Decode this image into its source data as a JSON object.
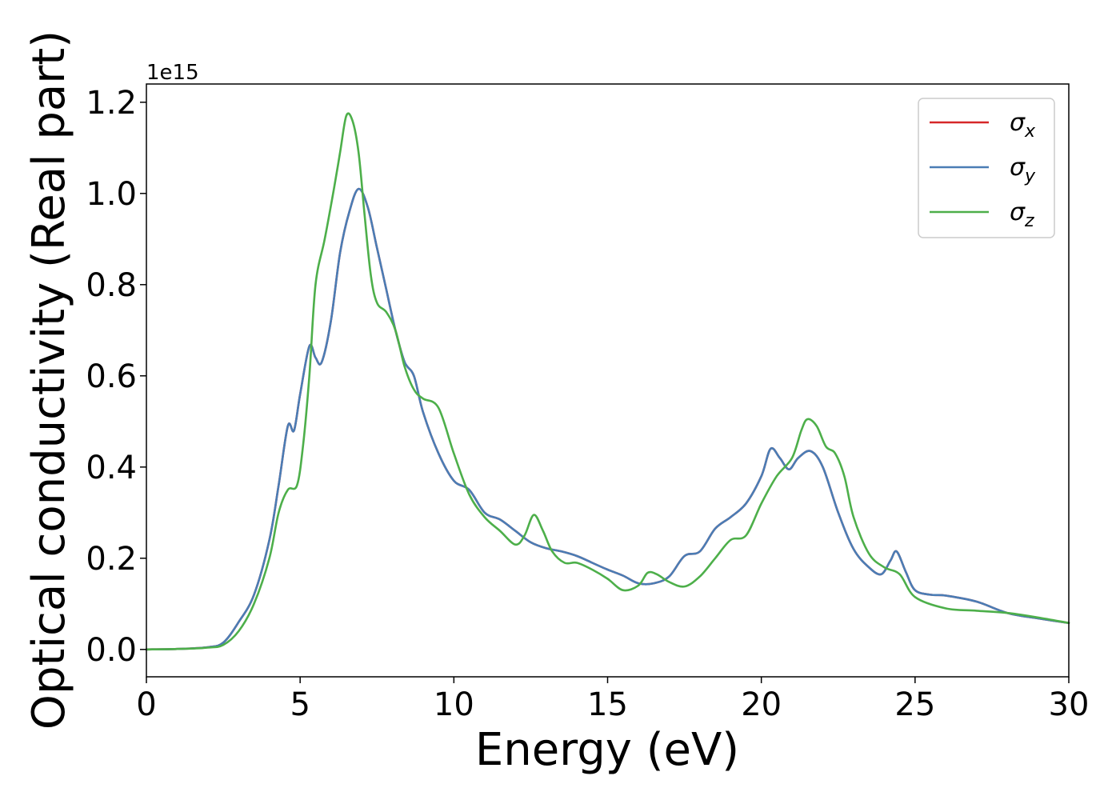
{
  "chart_data": {
    "type": "line",
    "title": "",
    "xlabel": "Energy (eV)",
    "ylabel": "Optical conductivity (Real part)",
    "y_offset_label": "1e15",
    "xlim": [
      0,
      30
    ],
    "ylim": [
      -0.06,
      1.24
    ],
    "xticks": [
      0,
      5,
      10,
      15,
      20,
      25,
      30
    ],
    "xtick_labels": [
      "0",
      "5",
      "10",
      "15",
      "20",
      "25",
      "30"
    ],
    "yticks": [
      0.0,
      0.2,
      0.4,
      0.6,
      0.8,
      1.0,
      1.2
    ],
    "ytick_labels": [
      "0.0",
      "0.2",
      "0.4",
      "0.6",
      "0.8",
      "1.0",
      "1.2"
    ],
    "grid": false,
    "legend_position": "top-right",
    "series": [
      {
        "name": "σx",
        "symbol": "σ",
        "subscript": "x",
        "color": "#d62728",
        "x": [
          0,
          1,
          2,
          2.5,
          3,
          3.5,
          4,
          4.3,
          4.6,
          4.8,
          5.0,
          5.3,
          5.5,
          5.7,
          6.0,
          6.3,
          6.6,
          6.9,
          7.2,
          7.5,
          7.8,
          8.1,
          8.4,
          8.7,
          9.0,
          9.5,
          10.0,
          10.5,
          11.0,
          11.5,
          12.0,
          12.5,
          13.0,
          13.5,
          14.0,
          14.5,
          15.0,
          15.5,
          16.0,
          16.5,
          17.0,
          17.5,
          18.0,
          18.5,
          19.0,
          19.5,
          20.0,
          20.3,
          20.6,
          20.9,
          21.2,
          21.6,
          22.0,
          22.5,
          23.0,
          23.5,
          23.9,
          24.2,
          24.4,
          24.7,
          25.0,
          25.5,
          26.0,
          27.0,
          28.0,
          29.0,
          30.0
        ],
        "y": [
          0.0,
          0.001,
          0.005,
          0.015,
          0.06,
          0.12,
          0.24,
          0.36,
          0.49,
          0.48,
          0.56,
          0.665,
          0.64,
          0.63,
          0.72,
          0.87,
          0.96,
          1.01,
          0.97,
          0.88,
          0.79,
          0.7,
          0.63,
          0.6,
          0.52,
          0.43,
          0.37,
          0.35,
          0.3,
          0.285,
          0.26,
          0.235,
          0.222,
          0.215,
          0.205,
          0.19,
          0.175,
          0.162,
          0.145,
          0.145,
          0.16,
          0.205,
          0.215,
          0.265,
          0.29,
          0.32,
          0.38,
          0.44,
          0.42,
          0.395,
          0.42,
          0.435,
          0.4,
          0.3,
          0.22,
          0.18,
          0.165,
          0.195,
          0.215,
          0.17,
          0.13,
          0.12,
          0.118,
          0.105,
          0.08,
          0.068,
          0.058
        ]
      },
      {
        "name": "σy",
        "symbol": "σ",
        "subscript": "y",
        "color": "#4a7db5",
        "x": [
          0,
          1,
          2,
          2.5,
          3,
          3.5,
          4,
          4.3,
          4.6,
          4.8,
          5.0,
          5.3,
          5.5,
          5.7,
          6.0,
          6.3,
          6.6,
          6.9,
          7.2,
          7.5,
          7.8,
          8.1,
          8.4,
          8.7,
          9.0,
          9.5,
          10.0,
          10.5,
          11.0,
          11.5,
          12.0,
          12.5,
          13.0,
          13.5,
          14.0,
          14.5,
          15.0,
          15.5,
          16.0,
          16.5,
          17.0,
          17.5,
          18.0,
          18.5,
          19.0,
          19.5,
          20.0,
          20.3,
          20.6,
          20.9,
          21.2,
          21.6,
          22.0,
          22.5,
          23.0,
          23.5,
          23.9,
          24.2,
          24.4,
          24.7,
          25.0,
          25.5,
          26.0,
          27.0,
          28.0,
          29.0,
          30.0
        ],
        "y": [
          0.0,
          0.001,
          0.005,
          0.015,
          0.06,
          0.12,
          0.24,
          0.36,
          0.49,
          0.48,
          0.56,
          0.665,
          0.64,
          0.63,
          0.72,
          0.87,
          0.96,
          1.01,
          0.97,
          0.88,
          0.79,
          0.7,
          0.63,
          0.6,
          0.52,
          0.43,
          0.37,
          0.35,
          0.3,
          0.285,
          0.26,
          0.235,
          0.222,
          0.215,
          0.205,
          0.19,
          0.175,
          0.162,
          0.145,
          0.145,
          0.16,
          0.205,
          0.215,
          0.265,
          0.29,
          0.32,
          0.38,
          0.44,
          0.42,
          0.395,
          0.42,
          0.435,
          0.4,
          0.3,
          0.22,
          0.18,
          0.165,
          0.195,
          0.215,
          0.17,
          0.13,
          0.12,
          0.118,
          0.105,
          0.08,
          0.068,
          0.058
        ]
      },
      {
        "name": "σz",
        "symbol": "σ",
        "subscript": "z",
        "color": "#4daf4a",
        "x": [
          0,
          1,
          2,
          2.5,
          3,
          3.5,
          4,
          4.3,
          4.6,
          4.9,
          5.1,
          5.3,
          5.5,
          5.8,
          6.1,
          6.3,
          6.5,
          6.7,
          6.9,
          7.1,
          7.3,
          7.5,
          7.8,
          8.1,
          8.4,
          8.7,
          9.0,
          9.5,
          10.0,
          10.5,
          11.0,
          11.5,
          12.0,
          12.3,
          12.6,
          12.9,
          13.2,
          13.6,
          14.0,
          14.5,
          15.0,
          15.5,
          16.0,
          16.3,
          16.6,
          17.0,
          17.5,
          18.0,
          18.5,
          19.0,
          19.5,
          20.0,
          20.5,
          21.0,
          21.3,
          21.5,
          21.8,
          22.1,
          22.4,
          22.7,
          23.0,
          23.5,
          24.0,
          24.5,
          25.0,
          26.0,
          27.0,
          28.0,
          29.0,
          30.0
        ],
        "y": [
          0.0,
          0.001,
          0.004,
          0.01,
          0.04,
          0.1,
          0.2,
          0.3,
          0.35,
          0.36,
          0.45,
          0.6,
          0.8,
          0.9,
          1.01,
          1.09,
          1.17,
          1.16,
          1.09,
          0.95,
          0.82,
          0.76,
          0.74,
          0.7,
          0.62,
          0.57,
          0.55,
          0.53,
          0.43,
          0.34,
          0.29,
          0.26,
          0.23,
          0.25,
          0.295,
          0.26,
          0.215,
          0.19,
          0.19,
          0.175,
          0.155,
          0.13,
          0.14,
          0.168,
          0.165,
          0.148,
          0.138,
          0.16,
          0.2,
          0.24,
          0.25,
          0.32,
          0.38,
          0.42,
          0.48,
          0.505,
          0.49,
          0.445,
          0.43,
          0.38,
          0.29,
          0.21,
          0.18,
          0.165,
          0.115,
          0.09,
          0.085,
          0.08,
          0.07,
          0.058
        ]
      }
    ]
  }
}
